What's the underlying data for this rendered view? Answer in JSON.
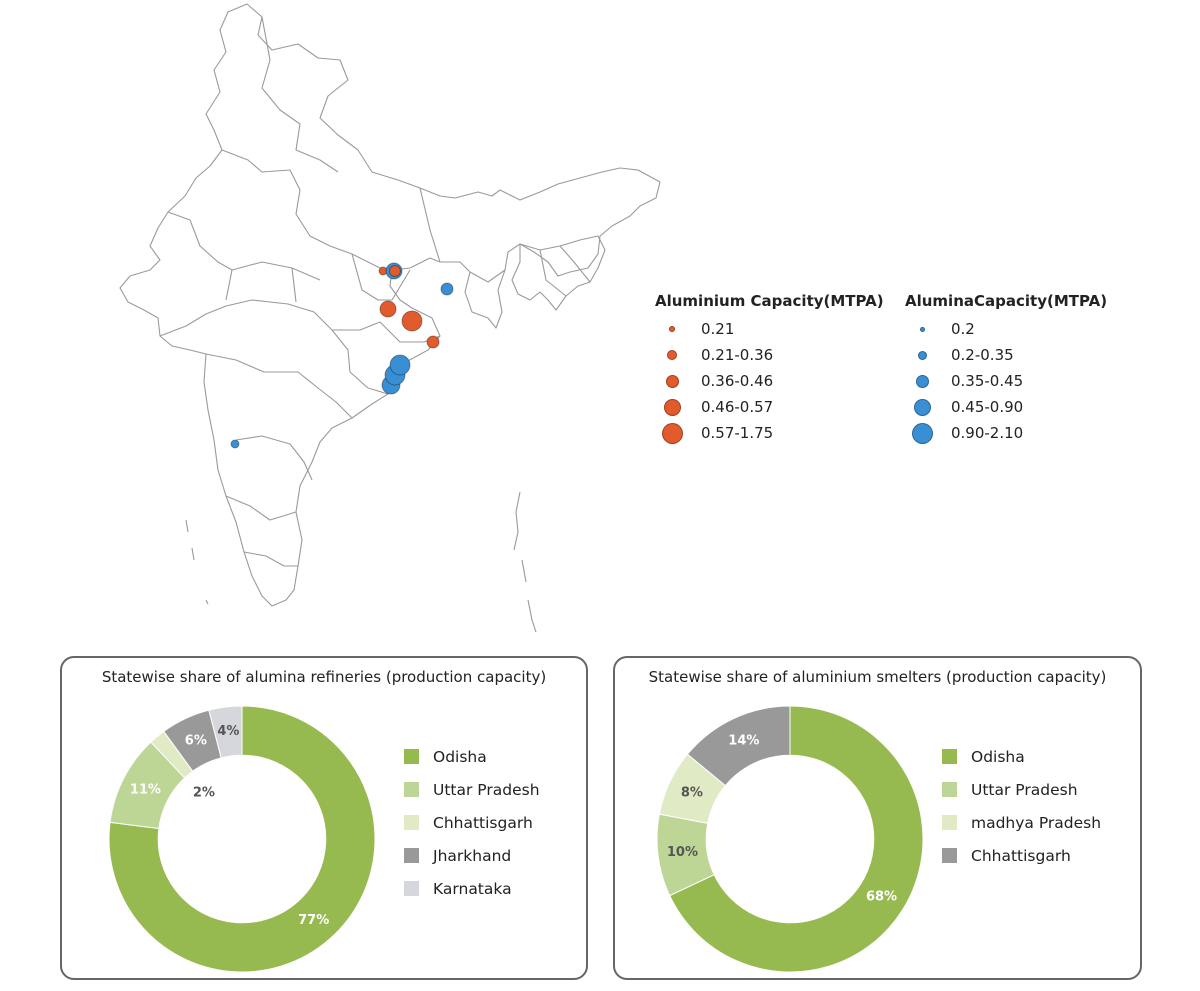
{
  "map_legend": {
    "aluminium": {
      "title": "Aluminium Capacity(MTPA)",
      "color": "#e25b2c",
      "items": [
        {
          "label": "0.21",
          "size": 6
        },
        {
          "label": "0.21-0.36",
          "size": 10
        },
        {
          "label": "0.36-0.46",
          "size": 13
        },
        {
          "label": "0.46-0.57",
          "size": 17
        },
        {
          "label": "0.57-1.75",
          "size": 21
        }
      ]
    },
    "alumina": {
      "title": "AluminaCapacity(MTPA)",
      "color": "#3a8fd4",
      "items": [
        {
          "label": "0.2",
          "size": 5
        },
        {
          "label": "0.2-0.35",
          "size": 9
        },
        {
          "label": "0.35-0.45",
          "size": 13
        },
        {
          "label": "0.45-0.90",
          "size": 17
        },
        {
          "label": "0.90-2.10",
          "size": 21
        }
      ]
    }
  },
  "chart_data": [
    {
      "type": "pie",
      "title": "Statewise share of alumina refineries (production capacity)",
      "categories": [
        "Odisha",
        "Uttar Pradesh",
        "Chhattisgarh",
        "Jharkhand",
        "Karnataka"
      ],
      "values": [
        77,
        11,
        2,
        6,
        4
      ],
      "labels": [
        "77%",
        "11%",
        "2%",
        "6%",
        "4%"
      ],
      "colors": [
        "#96ba50",
        "#bdd696",
        "#e0ebc5",
        "#999999",
        "#d6d7dc"
      ],
      "label_colors": [
        "#ffffff",
        "#ffffff",
        "#555555",
        "#ffffff",
        "#555555"
      ],
      "hole": 0.63,
      "legend": "right"
    },
    {
      "type": "pie",
      "title": "Statewise share of aluminium smelters (production capacity)",
      "categories": [
        "Odisha",
        "Uttar Pradesh",
        "madhya Pradesh",
        "Chhattisgarh"
      ],
      "values": [
        68,
        10,
        8,
        14
      ],
      "labels": [
        "68%",
        "10%",
        "8%",
        "14%"
      ],
      "colors": [
        "#96ba50",
        "#bdd696",
        "#e0ebc5",
        "#999999"
      ],
      "label_colors": [
        "#ffffff",
        "#555555",
        "#555555",
        "#ffffff"
      ],
      "hole": 0.63,
      "legend": "right"
    }
  ]
}
